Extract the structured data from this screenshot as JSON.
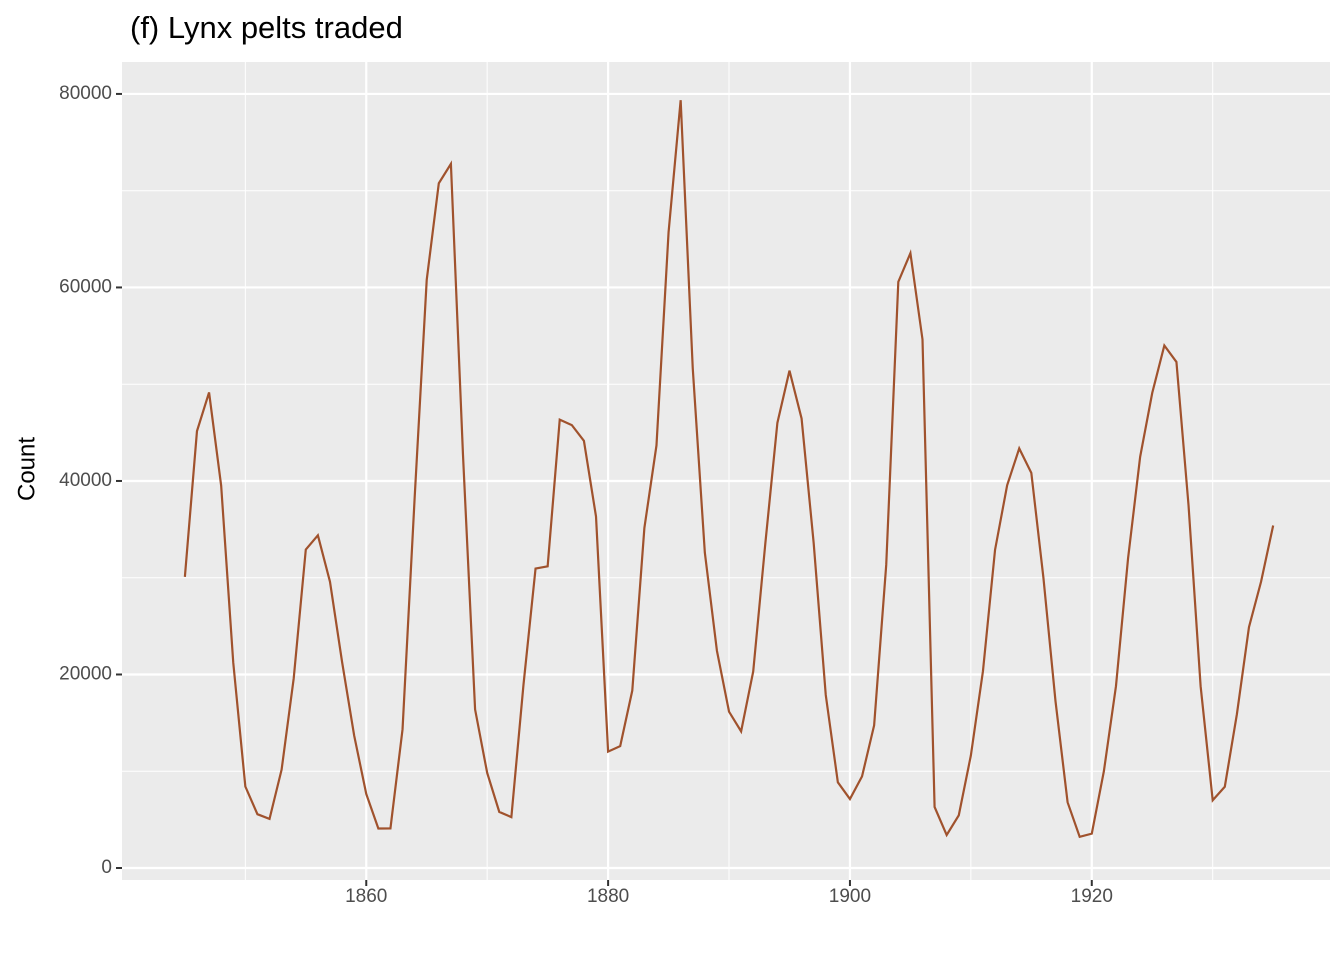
{
  "chart_data": {
    "type": "line",
    "title": "(f) Lynx pelts traded",
    "y_label": "Count",
    "x": [
      1845,
      1846,
      1847,
      1848,
      1849,
      1850,
      1851,
      1852,
      1853,
      1854,
      1855,
      1856,
      1857,
      1858,
      1859,
      1860,
      1861,
      1862,
      1863,
      1864,
      1865,
      1866,
      1867,
      1868,
      1869,
      1870,
      1871,
      1872,
      1873,
      1874,
      1875,
      1876,
      1877,
      1878,
      1879,
      1880,
      1881,
      1882,
      1883,
      1884,
      1885,
      1886,
      1887,
      1888,
      1889,
      1890,
      1891,
      1892,
      1893,
      1894,
      1895,
      1896,
      1897,
      1898,
      1899,
      1900,
      1901,
      1902,
      1903,
      1904,
      1905,
      1906,
      1907,
      1908,
      1909,
      1910,
      1911,
      1912,
      1913,
      1914,
      1915,
      1916,
      1917,
      1918,
      1919,
      1920,
      1921,
      1922,
      1923,
      1924,
      1925,
      1926,
      1927,
      1928,
      1929,
      1930,
      1931,
      1932,
      1933,
      1934,
      1935
    ],
    "series": [
      {
        "name": "Count",
        "color": "#a0522d",
        "values": [
          30090,
          45150,
          49150,
          39520,
          21230,
          8420,
          5560,
          5080,
          10170,
          19600,
          32910,
          34380,
          29590,
          21300,
          13690,
          7650,
          4080,
          4090,
          14330,
          38220,
          60780,
          70770,
          72770,
          42680,
          16390,
          9830,
          5800,
          5260,
          18910,
          30950,
          31180,
          46340,
          45770,
          44150,
          36330,
          12030,
          12600,
          18340,
          35140,
          43670,
          65690,
          79350,
          51650,
          32590,
          22450,
          16160,
          14120,
          20310,
          33510,
          46010,
          51400,
          46460,
          33590,
          17880,
          8860,
          7130,
          9470,
          14740,
          31320,
          60580,
          63540,
          54630,
          6310,
          3410,
          5440,
          11630,
          20350,
          32880,
          39550,
          43360,
          40830,
          30000,
          17230,
          6790,
          3220,
          3550,
          10000,
          18800,
          32000,
          42500,
          49100,
          54000,
          52300,
          37500,
          18800,
          7000,
          8400,
          15900,
          24900,
          29600,
          35400
        ]
      }
    ],
    "xlim": [
      1839.8,
      1939.7
    ],
    "xticks": [
      1860,
      1880,
      1900,
      1920
    ],
    "ylim": [
      -1240,
      83300
    ],
    "yticks": [
      0,
      20000,
      40000,
      60000,
      80000
    ],
    "grid": true,
    "minor_grid": true
  }
}
